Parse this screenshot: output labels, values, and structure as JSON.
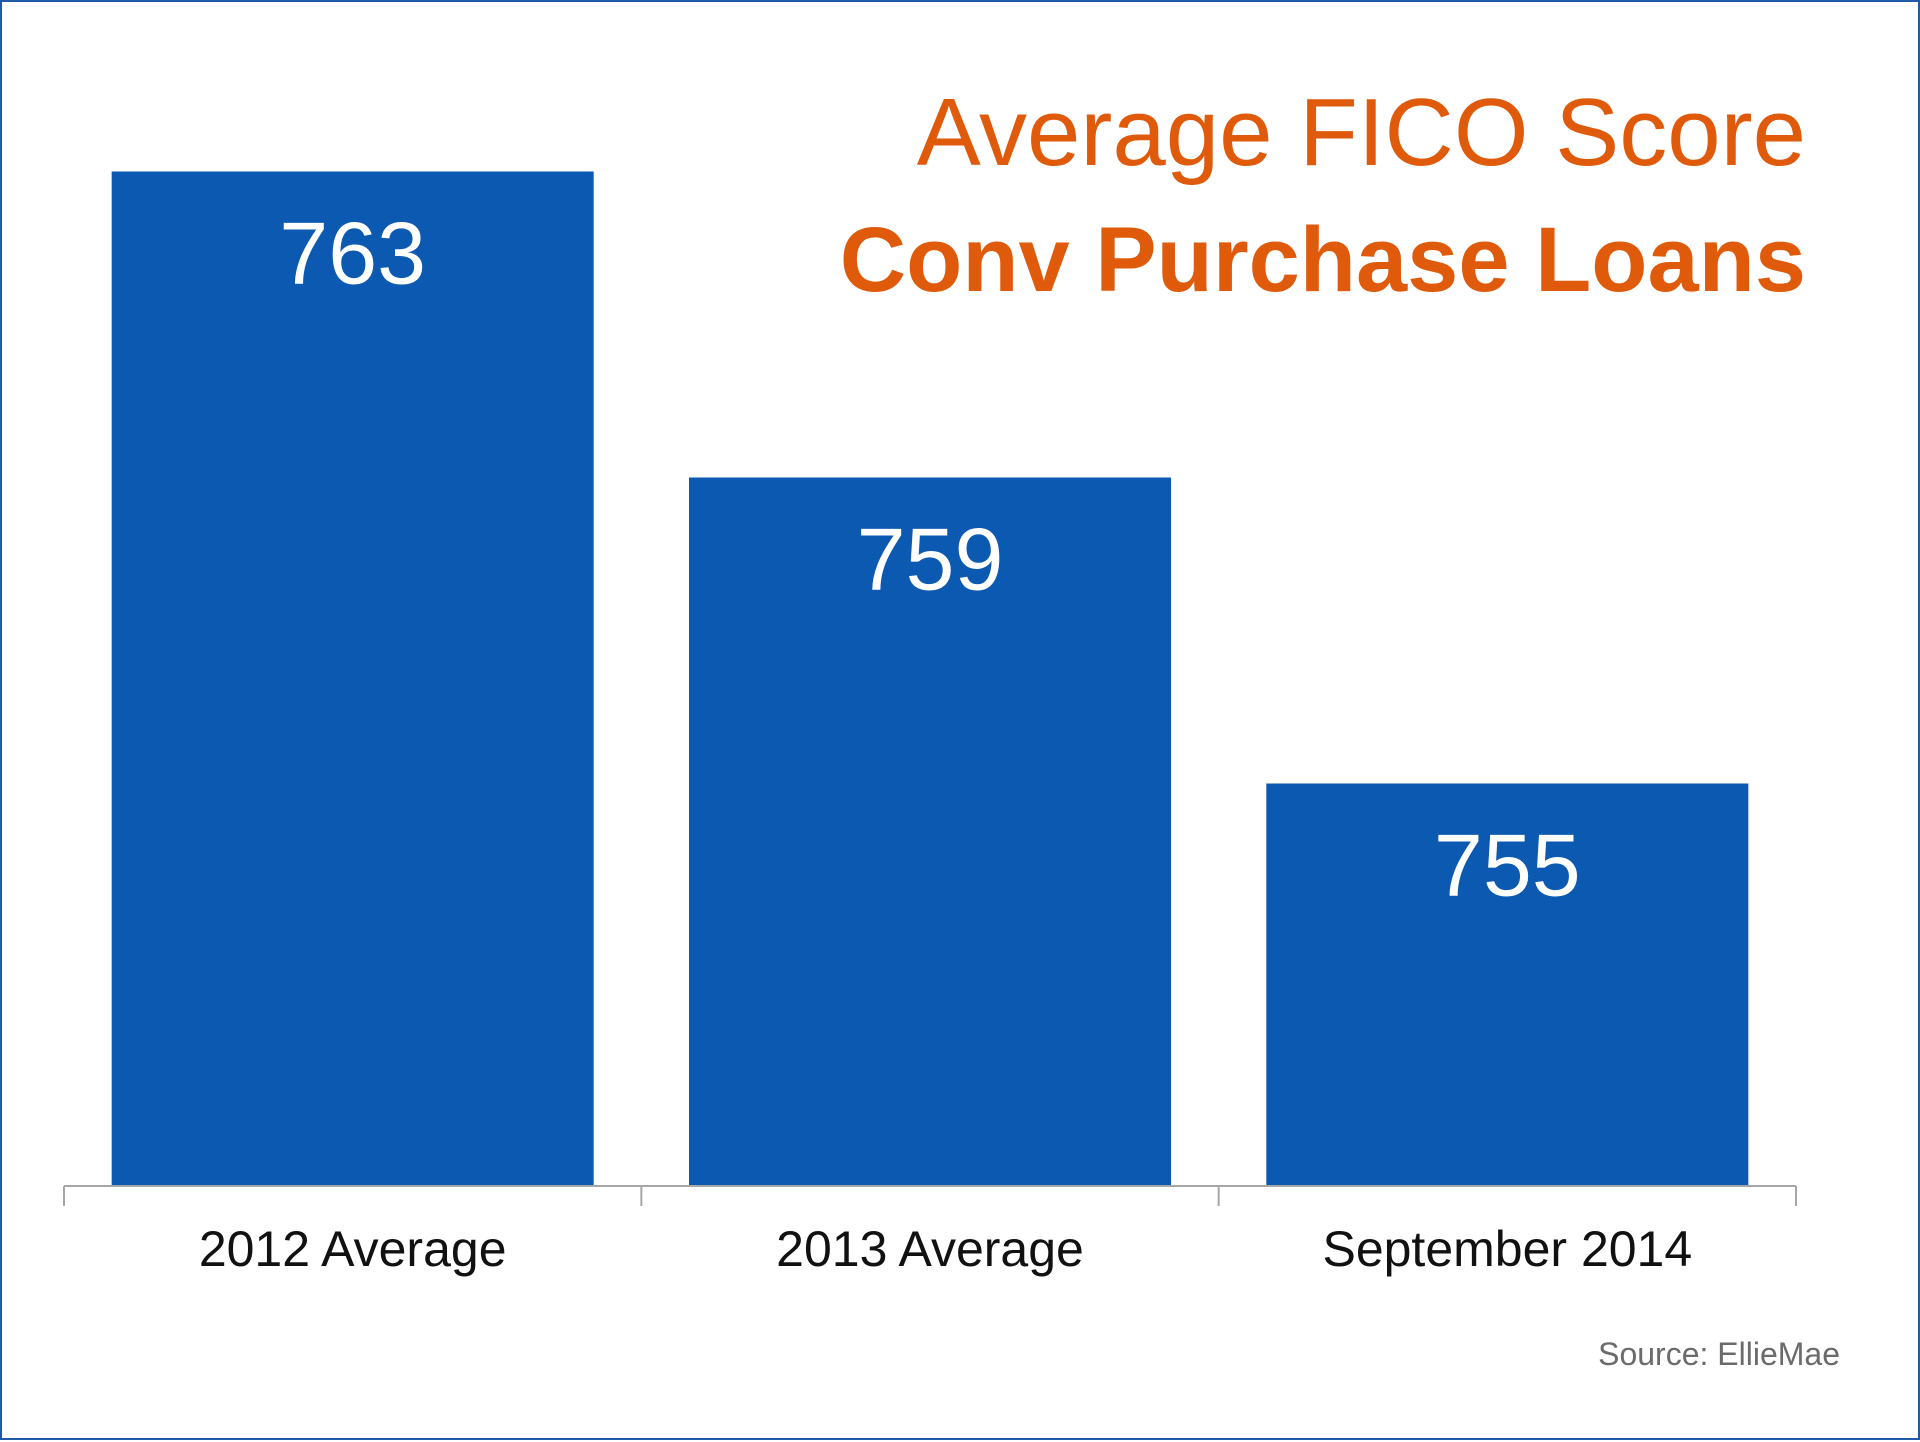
{
  "chart_data": {
    "type": "bar",
    "title": "Average FICO Score",
    "subtitle": "Conv Purchase Loans",
    "categories": [
      "2012 Average",
      "2013 Average",
      "September 2014"
    ],
    "values": [
      763,
      759,
      755
    ],
    "data_labels": [
      "763",
      "759",
      "755"
    ],
    "ylim": [
      750,
      765
    ],
    "xlabel": "",
    "ylabel": "",
    "grid": false,
    "legend": "none",
    "bar_color": "#0c59b1",
    "label_color": "#ffffff",
    "title_color": "#e05a0c"
  },
  "source": "Source: EllieMae"
}
